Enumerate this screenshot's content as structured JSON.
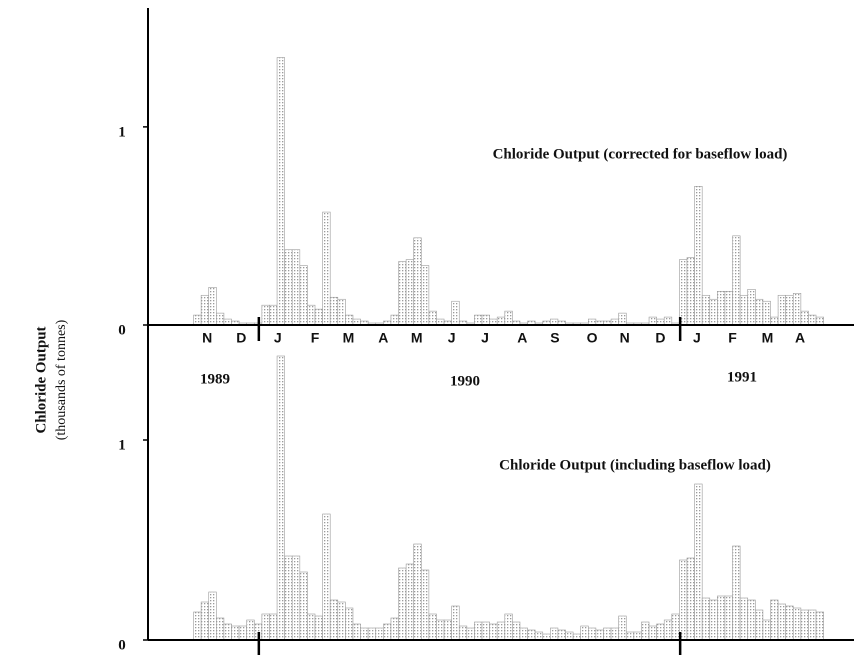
{
  "chart_data": [
    {
      "type": "bar",
      "title": "Chloride Output (corrected for baseflow load)",
      "ylabel": [
        "Chloride Output",
        "(thousands of tonnes)"
      ],
      "color": "#9a9a9a",
      "x": [
        6,
        7,
        8,
        9,
        10,
        11,
        12,
        13,
        14,
        15,
        16,
        17,
        18,
        19,
        20,
        21,
        22,
        23,
        24,
        25,
        26,
        27,
        28,
        29,
        30,
        31,
        32,
        33,
        34,
        35,
        36,
        37,
        38,
        39,
        40,
        41,
        42,
        43,
        44,
        45,
        46,
        47,
        48,
        49,
        50,
        51,
        52,
        53,
        54,
        55,
        56,
        57,
        58,
        59,
        60,
        61,
        62,
        63,
        64,
        65,
        66,
        67,
        68,
        69,
        70,
        71,
        72,
        73,
        74,
        75,
        76,
        77,
        78,
        79,
        80,
        81,
        82,
        83,
        84,
        85,
        86,
        87,
        88
      ],
      "values": [
        0.05,
        0.15,
        0.19,
        0.06,
        0.03,
        0.02,
        0.01,
        0.01,
        0.01,
        0.1,
        0.1,
        1.35,
        0.38,
        0.38,
        0.3,
        0.1,
        0.08,
        0.57,
        0.14,
        0.13,
        0.05,
        0.03,
        0.02,
        0.01,
        0.01,
        0.02,
        0.05,
        0.32,
        0.33,
        0.44,
        0.3,
        0.07,
        0.03,
        0.02,
        0.12,
        0.02,
        0.01,
        0.05,
        0.05,
        0.03,
        0.04,
        0.07,
        0.02,
        0.01,
        0.02,
        0.01,
        0.02,
        0.03,
        0.02,
        0.01,
        0.01,
        0.01,
        0.03,
        0.02,
        0.02,
        0.03,
        0.06,
        0.01,
        0.01,
        0.01,
        0.04,
        0.03,
        0.04,
        0.01,
        0.33,
        0.34,
        0.7,
        0.15,
        0.13,
        0.17,
        0.17,
        0.45,
        0.15,
        0.18,
        0.13,
        0.12,
        0.04,
        0.15,
        0.15,
        0.16,
        0.07,
        0.05,
        0.04
      ],
      "xlim": [
        0,
        93
      ],
      "xticks": [
        {
          "value": 7.8,
          "label": "N"
        },
        {
          "value": 12.3,
          "label": "D"
        },
        {
          "value": 17.1,
          "label": "J"
        },
        {
          "value": 22,
          "label": "F"
        },
        {
          "value": 26.4,
          "label": "M"
        },
        {
          "value": 31,
          "label": "A"
        },
        {
          "value": 35.4,
          "label": "M"
        },
        {
          "value": 40,
          "label": "J"
        },
        {
          "value": 44.4,
          "label": "J"
        },
        {
          "value": 49.3,
          "label": "A"
        },
        {
          "value": 53.6,
          "label": "S"
        },
        {
          "value": 58.5,
          "label": "O"
        },
        {
          "value": 62.8,
          "label": "N"
        },
        {
          "value": 67.5,
          "label": "D"
        },
        {
          "value": 72.3,
          "label": "J"
        },
        {
          "value": 77,
          "label": "F"
        },
        {
          "value": 81.6,
          "label": "M"
        },
        {
          "value": 85.9,
          "label": "A"
        }
      ],
      "year_bounds": [
        14.6,
        70.1
      ],
      "annotations": [
        "1989",
        "1990",
        "1991"
      ],
      "ylim": [
        0,
        1.6
      ],
      "yticks": [
        0,
        1
      ]
    },
    {
      "type": "bar",
      "title": "Chloride Output (including baseflow load)",
      "color": "#9a9a9a",
      "x": [
        6,
        7,
        8,
        9,
        10,
        11,
        12,
        13,
        14,
        15,
        16,
        17,
        18,
        19,
        20,
        21,
        22,
        23,
        24,
        25,
        26,
        27,
        28,
        29,
        30,
        31,
        32,
        33,
        34,
        35,
        36,
        37,
        38,
        39,
        40,
        41,
        42,
        43,
        44,
        45,
        46,
        47,
        48,
        49,
        50,
        51,
        52,
        53,
        54,
        55,
        56,
        57,
        58,
        59,
        60,
        61,
        62,
        63,
        64,
        65,
        66,
        67,
        68,
        69,
        70,
        71,
        72,
        73,
        74,
        75,
        76,
        77,
        78,
        79,
        80,
        81,
        82,
        83,
        84,
        85,
        86,
        87,
        88
      ],
      "values": [
        0.14,
        0.19,
        0.24,
        0.11,
        0.08,
        0.07,
        0.07,
        0.1,
        0.08,
        0.13,
        0.13,
        1.42,
        0.42,
        0.42,
        0.34,
        0.13,
        0.12,
        0.63,
        0.2,
        0.19,
        0.16,
        0.08,
        0.06,
        0.06,
        0.06,
        0.08,
        0.11,
        0.36,
        0.38,
        0.48,
        0.35,
        0.13,
        0.1,
        0.1,
        0.17,
        0.07,
        0.06,
        0.09,
        0.09,
        0.08,
        0.09,
        0.13,
        0.09,
        0.06,
        0.05,
        0.04,
        0.03,
        0.06,
        0.05,
        0.04,
        0.03,
        0.07,
        0.06,
        0.05,
        0.06,
        0.06,
        0.12,
        0.04,
        0.04,
        0.09,
        0.07,
        0.08,
        0.1,
        0.13,
        0.4,
        0.41,
        0.78,
        0.21,
        0.2,
        0.22,
        0.22,
        0.47,
        0.21,
        0.2,
        0.15,
        0.1,
        0.2,
        0.18,
        0.17,
        0.16,
        0.15,
        0.15,
        0.14
      ],
      "xlim": [
        0,
        93
      ],
      "year_bounds": [
        14.6,
        70.1
      ],
      "ylim": [
        0,
        1.42
      ],
      "yticks": [
        0,
        1
      ]
    }
  ]
}
